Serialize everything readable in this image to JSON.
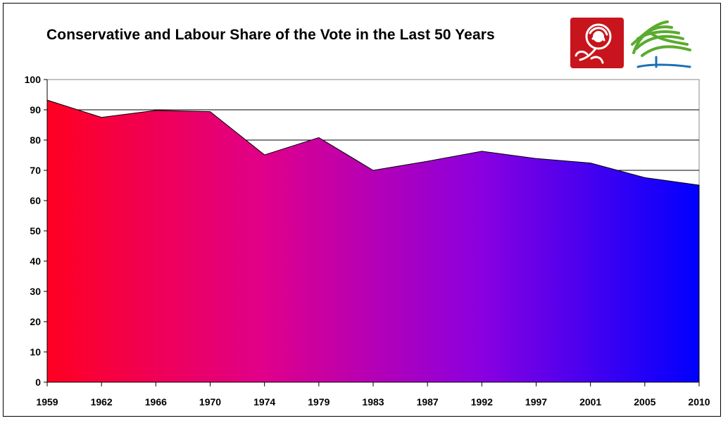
{
  "chart_data": {
    "type": "area",
    "title": "Conservative and Labour Share of the Vote in the Last 50 Years",
    "x": [
      1959,
      1962,
      1966,
      1970,
      1974,
      1979,
      1983,
      1987,
      1992,
      1997,
      2001,
      2005,
      2010
    ],
    "series": [
      {
        "values": [
          93.2,
          87.5,
          89.8,
          89.4,
          75.1,
          80.8,
          70.0,
          73.0,
          76.3,
          73.9,
          72.4,
          67.6,
          65.1
        ]
      }
    ],
    "xlabel": "",
    "ylabel": "",
    "ylim": [
      0,
      100
    ],
    "yticks": [
      0,
      10,
      20,
      30,
      40,
      50,
      60,
      70,
      80,
      90,
      100
    ],
    "gridlines": [
      70,
      80,
      90
    ],
    "fill_gradient": [
      "#ff0022",
      "#e0008a",
      "#8a00e0",
      "#0000ff"
    ],
    "legend": "none"
  },
  "logos": {
    "labour": "labour-rose-logo",
    "conservative": "conservative-tree-logo",
    "labour_color": "#c8141c",
    "conservative_color": "#5aab2e",
    "tree_trunk_color": "#1a6fb8"
  }
}
